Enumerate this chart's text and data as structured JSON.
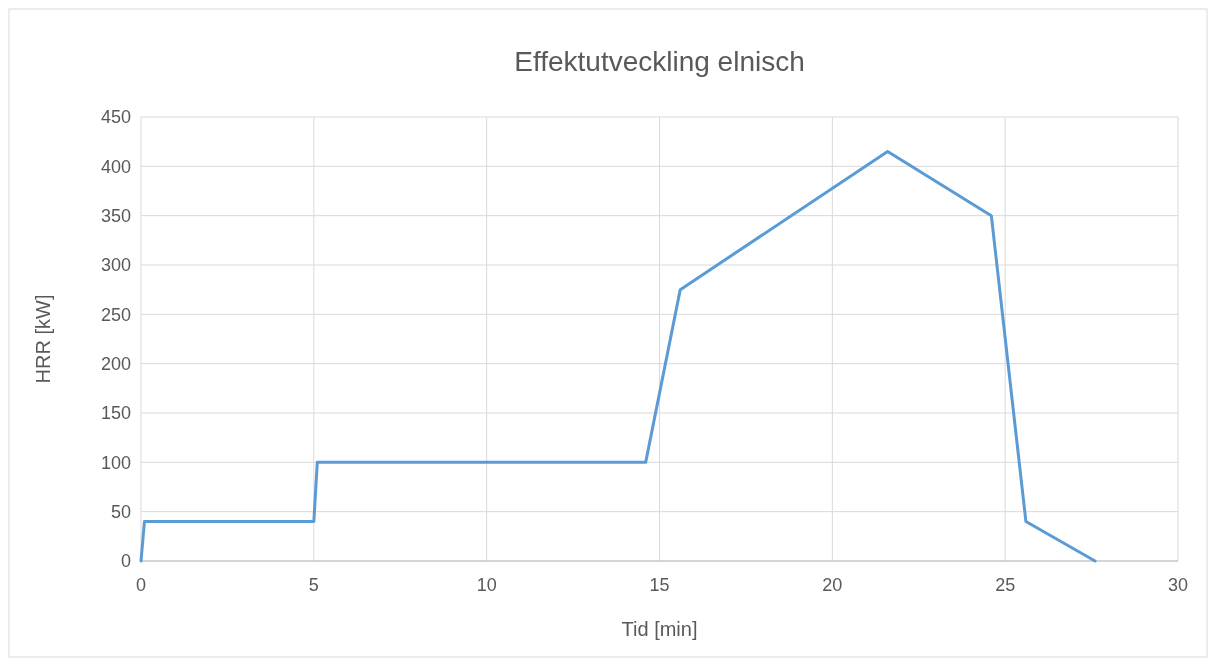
{
  "chart_data": {
    "type": "line",
    "title": "Effektutveckling elnisch",
    "xlabel": "Tid [min]",
    "ylabel": "HRR [kW]",
    "x": [
      0,
      0.1,
      5,
      5.1,
      14.6,
      15.6,
      21.6,
      24.6,
      25.6,
      27.6
    ],
    "series": [
      {
        "color": "#5b9bd5",
        "values": [
          0,
          40,
          40,
          100,
          100,
          275,
          415,
          350,
          40,
          0
        ]
      }
    ],
    "xlim": [
      0,
      30
    ],
    "xticks": [
      0,
      5,
      10,
      15,
      20,
      25,
      30
    ],
    "ylim": [
      0,
      450
    ],
    "yticks": [
      0,
      50,
      100,
      150,
      200,
      250,
      300,
      350,
      400,
      450
    ],
    "grid": true,
    "marker": "none",
    "line_style": "solid"
  }
}
